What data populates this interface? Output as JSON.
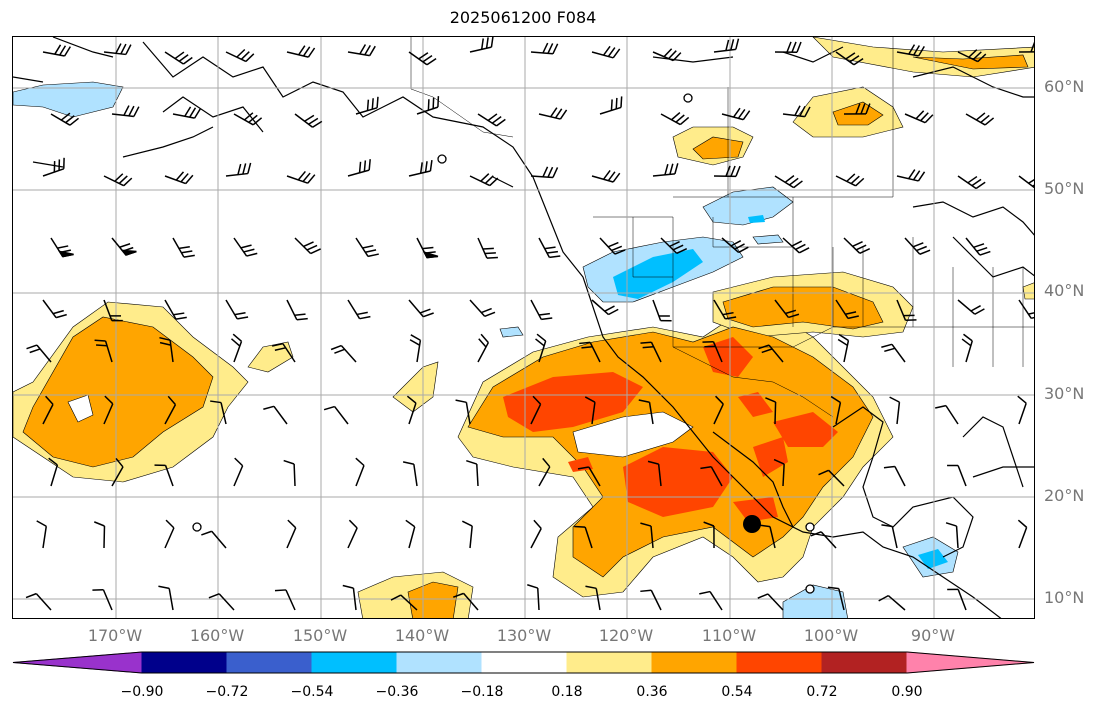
{
  "title": "2025061200 F084",
  "lat_labels": [
    "60°N",
    "50°N",
    "40°N",
    "30°N",
    "20°N",
    "10°N"
  ],
  "lon_labels": [
    "170°W",
    "160°W",
    "150°W",
    "140°W",
    "130°W",
    "120°W",
    "110°W",
    "100°W",
    "90°W"
  ],
  "colorbar": {
    "ticks": [
      "−0.90",
      "−0.72",
      "−0.54",
      "−0.36",
      "−0.18",
      "0.18",
      "0.36",
      "0.54",
      "0.72",
      "0.90"
    ],
    "colors": [
      "#9932cc",
      "#00008b",
      "#3a5fcd",
      "#00bfff",
      "#b0e2ff",
      "#ffffff",
      "#ffec8b",
      "#ffa500",
      "#ff4500",
      "#b22222",
      "#ff82ab"
    ],
    "extend": "both"
  },
  "map": {
    "type": "filled-contour-with-wind-barbs",
    "extent": {
      "lon": [
        -180,
        -80
      ],
      "lat": [
        8,
        65
      ]
    },
    "graticule": {
      "lon_step": 10,
      "lat_step": 10
    }
  }
}
